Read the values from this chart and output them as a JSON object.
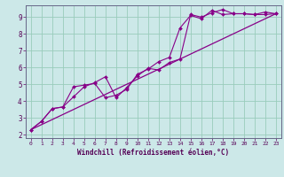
{
  "xlabel": "Windchill (Refroidissement éolien,°C)",
  "bg_color": "#cce8e8",
  "grid_color": "#99ccbb",
  "line_color": "#880088",
  "xlim": [
    -0.5,
    23.5
  ],
  "ylim": [
    1.8,
    9.7
  ],
  "xticks": [
    0,
    1,
    2,
    3,
    4,
    5,
    6,
    7,
    8,
    9,
    10,
    11,
    12,
    13,
    14,
    15,
    16,
    17,
    18,
    19,
    20,
    21,
    22,
    23
  ],
  "yticks": [
    2,
    3,
    4,
    5,
    6,
    7,
    8,
    9
  ],
  "line1_x": [
    0,
    1,
    2,
    3,
    4,
    5,
    6,
    7,
    8,
    9,
    10,
    11,
    12,
    13,
    14,
    15,
    16,
    17,
    18,
    19,
    20,
    21,
    22,
    23
  ],
  "line1_y": [
    2.3,
    2.8,
    3.55,
    3.65,
    4.85,
    4.95,
    5.05,
    4.2,
    4.35,
    4.7,
    5.6,
    5.9,
    6.35,
    6.6,
    8.35,
    9.1,
    8.9,
    9.4,
    9.15,
    9.2,
    9.2,
    9.15,
    9.3,
    9.2
  ],
  "line2_x": [
    0,
    1,
    2,
    3,
    4,
    5,
    6,
    7,
    8,
    9,
    10,
    11,
    12,
    13,
    14,
    15,
    16,
    17,
    18,
    19,
    20,
    21,
    22,
    23
  ],
  "line2_y": [
    2.3,
    2.8,
    3.55,
    3.65,
    4.25,
    4.85,
    5.1,
    5.45,
    4.2,
    4.8,
    5.5,
    5.95,
    5.85,
    6.3,
    6.5,
    9.15,
    9.0,
    9.25,
    9.45,
    9.2,
    9.2,
    9.15,
    9.15,
    9.2
  ],
  "line3_x": [
    0,
    23
  ],
  "line3_y": [
    2.3,
    9.2
  ]
}
